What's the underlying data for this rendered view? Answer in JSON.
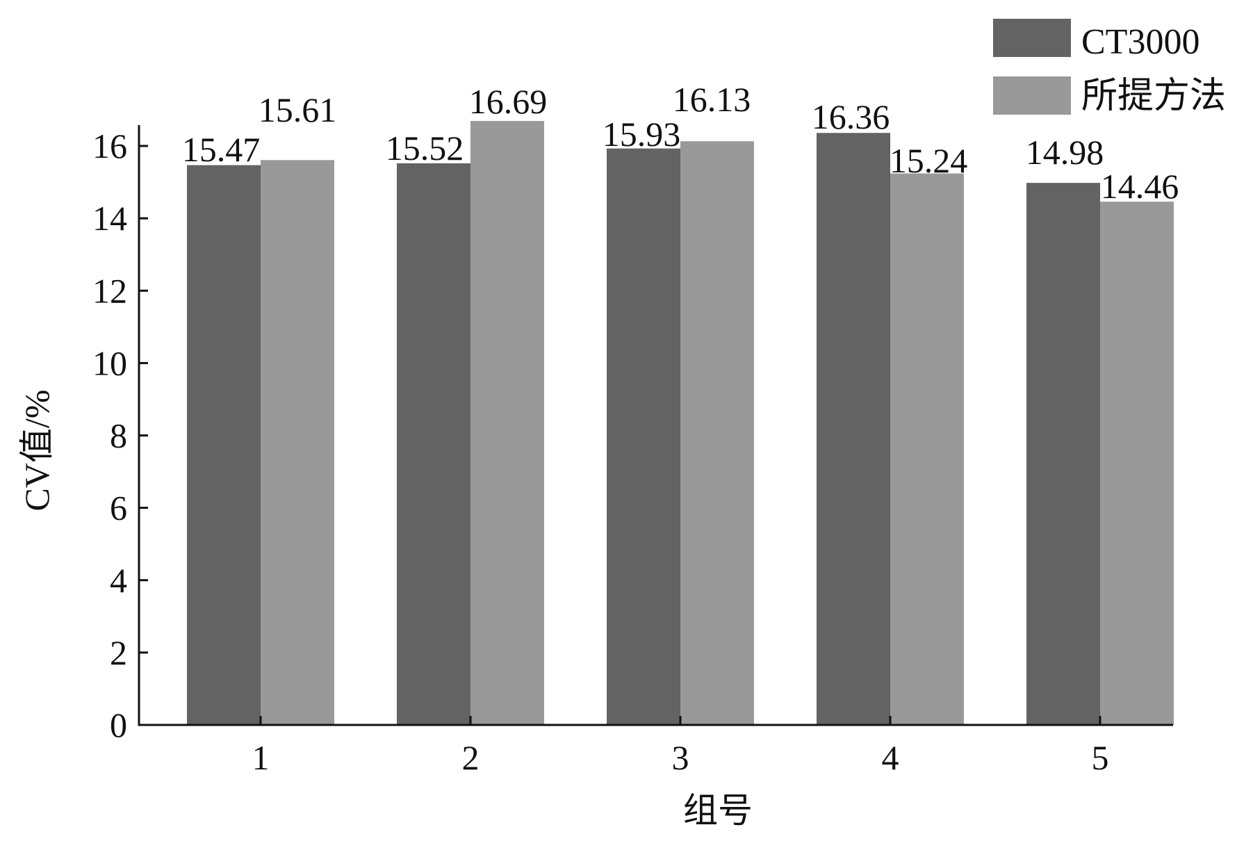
{
  "chart_data": {
    "type": "bar",
    "title": "",
    "xlabel": "组号",
    "ylabel": "CV值/%",
    "categories": [
      "1",
      "2",
      "3",
      "4",
      "5"
    ],
    "ylim": [
      0,
      16
    ],
    "yticks": [
      0,
      2,
      4,
      6,
      8,
      10,
      12,
      14,
      16
    ],
    "grid": false,
    "legend_position": "top-right",
    "series": [
      {
        "name": "CT3000",
        "color": "#636363",
        "values": [
          15.47,
          15.52,
          15.93,
          16.36,
          14.98
        ],
        "labels": [
          "15.47",
          "15.52",
          "15.93",
          "16.36",
          "14.98"
        ]
      },
      {
        "name": "所提方法",
        "color": "#999999",
        "values": [
          15.61,
          16.69,
          16.13,
          15.24,
          14.46
        ],
        "labels": [
          "15.61",
          "16.69",
          "16.13",
          "15.24",
          "14.46"
        ]
      }
    ]
  }
}
